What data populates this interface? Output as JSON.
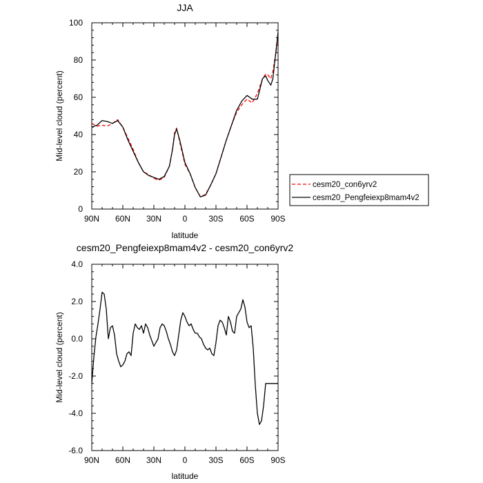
{
  "chart_data": [
    {
      "type": "line",
      "title": "JJA",
      "xlabel": "latitude",
      "ylabel": "Mid-level cloud (percent)",
      "xlim": [
        -90,
        90
      ],
      "ylim": [
        0,
        100
      ],
      "x_direction": "90N on left to 90S on right",
      "x_ticks": [
        -90,
        -60,
        -30,
        0,
        30,
        60,
        90
      ],
      "x_tick_labels": [
        "90N",
        "60N",
        "30N",
        "0",
        "30S",
        "60S",
        "90S"
      ],
      "y_ticks": [
        0,
        20,
        40,
        60,
        80,
        100
      ],
      "y_tick_labels": [
        "0",
        "20",
        "40",
        "60",
        "80",
        "100"
      ],
      "legend_position": "right, outside plot",
      "series": [
        {
          "name": "cesm20_con6yrv2",
          "color": "#ff0000",
          "dash": "dashed",
          "x": [
            -90,
            -85,
            -80,
            -75,
            -70,
            -65,
            -60,
            -55,
            -50,
            -45,
            -40,
            -35,
            -30,
            -25,
            -20,
            -15,
            -12,
            -10,
            -8,
            -5,
            0,
            5,
            10,
            15,
            20,
            25,
            30,
            35,
            40,
            45,
            50,
            55,
            60,
            65,
            70,
            75,
            78,
            80,
            83,
            85,
            88,
            90
          ],
          "values": [
            46,
            44.5,
            45,
            44.5,
            46,
            48,
            44,
            38,
            32,
            25,
            20,
            18.5,
            16.5,
            15.5,
            17,
            23,
            32,
            41,
            43.5,
            36,
            24,
            19,
            11.5,
            6.5,
            8,
            13,
            19,
            28,
            37,
            45,
            52,
            56,
            59,
            57,
            62,
            70,
            72.5,
            72,
            70,
            74,
            84,
            93
          ]
        },
        {
          "name": "cesm20_Pengfeiexp8mam4v2",
          "color": "#000000",
          "dash": "solid",
          "x": [
            -90,
            -85,
            -80,
            -75,
            -70,
            -65,
            -60,
            -55,
            -50,
            -45,
            -40,
            -35,
            -30,
            -25,
            -20,
            -15,
            -12,
            -10,
            -8,
            -5,
            0,
            5,
            10,
            15,
            20,
            25,
            30,
            35,
            40,
            45,
            50,
            55,
            60,
            65,
            70,
            75,
            78,
            80,
            83,
            85,
            88,
            90
          ],
          "values": [
            44,
            45,
            47.5,
            47,
            46,
            47.5,
            44,
            37,
            31,
            25,
            20,
            18,
            17,
            16,
            17.5,
            23,
            32,
            40,
            43,
            37,
            25,
            19,
            11.5,
            6.5,
            7.5,
            13,
            19,
            28,
            37,
            45,
            53,
            58,
            61,
            59,
            59,
            70,
            71.5,
            69,
            66.5,
            70,
            85,
            95
          ]
        }
      ]
    },
    {
      "type": "line",
      "title": "cesm20_Pengfeiexp8mam4v2 - cesm20_con6yrv2",
      "xlabel": "latitude",
      "ylabel": "Mid-level cloud (percent)",
      "xlim": [
        -90,
        90
      ],
      "ylim": [
        -6,
        4
      ],
      "x_ticks": [
        -90,
        -60,
        -30,
        0,
        30,
        60,
        90
      ],
      "x_tick_labels": [
        "90N",
        "60N",
        "30N",
        "0",
        "30S",
        "60S",
        "90S"
      ],
      "y_ticks": [
        -6,
        -4,
        -2,
        0,
        2,
        4
      ],
      "y_tick_labels": [
        "-6.0",
        "-4.0",
        "-2.0",
        "0.0",
        "2.0",
        "4.0"
      ],
      "series": [
        {
          "color": "#000000",
          "dash": "solid",
          "x": [
            -90,
            -88,
            -86,
            -84,
            -82,
            -80,
            -78,
            -76,
            -74,
            -72,
            -70,
            -68,
            -66,
            -64,
            -62,
            -60,
            -58,
            -56,
            -54,
            -52,
            -50,
            -48,
            -46,
            -44,
            -42,
            -40,
            -38,
            -36,
            -34,
            -32,
            -30,
            -28,
            -26,
            -24,
            -22,
            -20,
            -18,
            -16,
            -14,
            -12,
            -10,
            -8,
            -6,
            -4,
            -2,
            0,
            2,
            4,
            6,
            8,
            10,
            12,
            14,
            16,
            18,
            20,
            22,
            24,
            26,
            28,
            30,
            32,
            34,
            36,
            38,
            40,
            42,
            44,
            46,
            48,
            50,
            52,
            54,
            56,
            58,
            60,
            62,
            64,
            66,
            68,
            70,
            72,
            74,
            76,
            78,
            80,
            82,
            84,
            86,
            88,
            90
          ],
          "values": [
            -2.4,
            -1.0,
            0.1,
            0.8,
            1.6,
            2.5,
            2.4,
            1.6,
            0.0,
            0.6,
            0.7,
            0.2,
            -0.8,
            -1.2,
            -1.5,
            -1.4,
            -1.2,
            -0.8,
            -0.7,
            -0.9,
            0.3,
            0.8,
            0.6,
            0.5,
            0.7,
            0.3,
            0.8,
            0.6,
            0.2,
            -0.1,
            -0.4,
            -0.2,
            0.0,
            0.6,
            0.8,
            0.7,
            0.4,
            0.0,
            -0.3,
            -0.7,
            -0.9,
            -0.6,
            0.2,
            1.0,
            1.4,
            1.2,
            0.9,
            0.7,
            0.8,
            0.5,
            0.3,
            0.3,
            0.1,
            0.0,
            -0.3,
            -0.5,
            -0.6,
            -0.5,
            -0.8,
            -0.9,
            -0.2,
            0.7,
            1.0,
            0.9,
            0.6,
            0.2,
            1.2,
            0.9,
            0.4,
            0.3,
            1.2,
            1.4,
            1.6,
            2.1,
            1.7,
            0.9,
            0.6,
            0.7,
            -0.5,
            -2.5,
            -4.0,
            -4.6,
            -4.4,
            -3.6,
            -2.4,
            -2.4,
            -2.4,
            -2.4,
            -2.4,
            -2.4,
            -2.4
          ]
        }
      ]
    }
  ]
}
